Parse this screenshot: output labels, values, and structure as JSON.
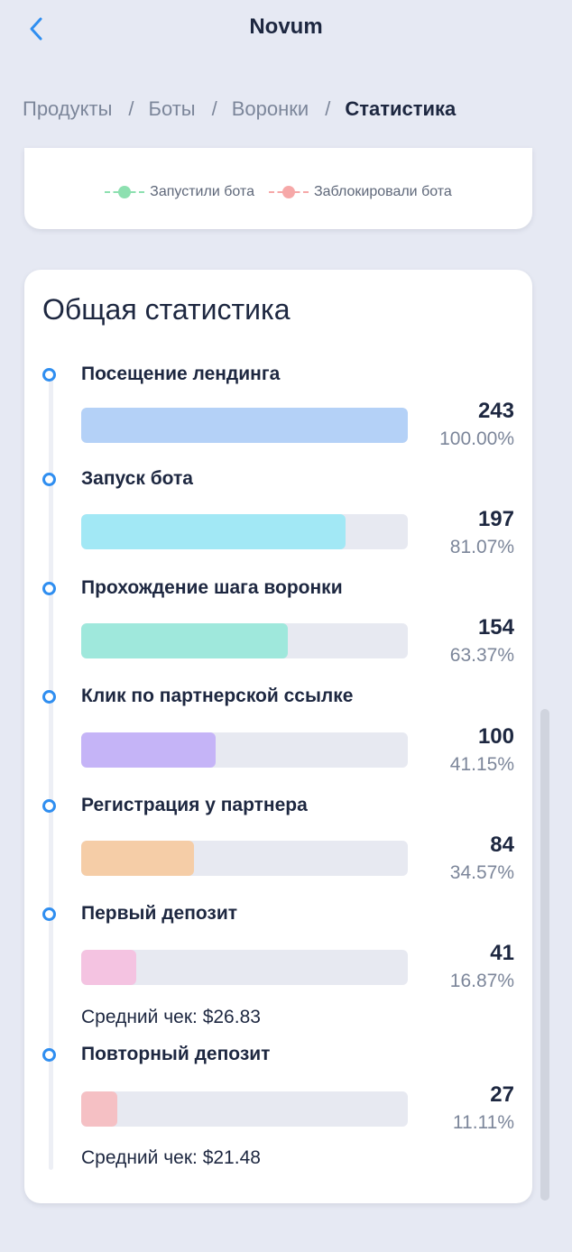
{
  "header": {
    "title": "Novum",
    "back_icon": "chevron-left-icon"
  },
  "breadcrumb": {
    "items": [
      "Продукты",
      "Боты",
      "Воронки"
    ],
    "separator": "/",
    "current": "Статистика"
  },
  "legend": {
    "items": [
      {
        "label": "Запустили бота",
        "color": "#8de0b0"
      },
      {
        "label": "Заблокировали бота",
        "color": "#f6a8a8"
      }
    ]
  },
  "stats": {
    "title": "Общая статистика",
    "avg_prefix": "Средний чек:",
    "steps": [
      {
        "label": "Посещение лендинга",
        "count": "243",
        "percent": "100.00%",
        "fraction": 1.0,
        "color": "#b4d1f7"
      },
      {
        "label": "Запуск бота",
        "count": "197",
        "percent": "81.07%",
        "fraction": 0.8107,
        "color": "#a2e8f5"
      },
      {
        "label": "Прохождение шага воронки",
        "count": "154",
        "percent": "63.37%",
        "fraction": 0.6337,
        "color": "#9fe8dc"
      },
      {
        "label": "Клик по партнерской ссылке",
        "count": "100",
        "percent": "41.15%",
        "fraction": 0.4115,
        "color": "#c5b4f7"
      },
      {
        "label": "Регистрация у партнера",
        "count": "84",
        "percent": "34.57%",
        "fraction": 0.3457,
        "color": "#f5cda7"
      },
      {
        "label": "Первый депозит",
        "count": "41",
        "percent": "16.87%",
        "fraction": 0.1687,
        "color": "#f4c3e1",
        "avg_check": "$26.83"
      },
      {
        "label": "Повторный депозит",
        "count": "27",
        "percent": "11.11%",
        "fraction": 0.1111,
        "color": "#f5c0c4",
        "avg_check": "$21.48"
      }
    ]
  }
}
